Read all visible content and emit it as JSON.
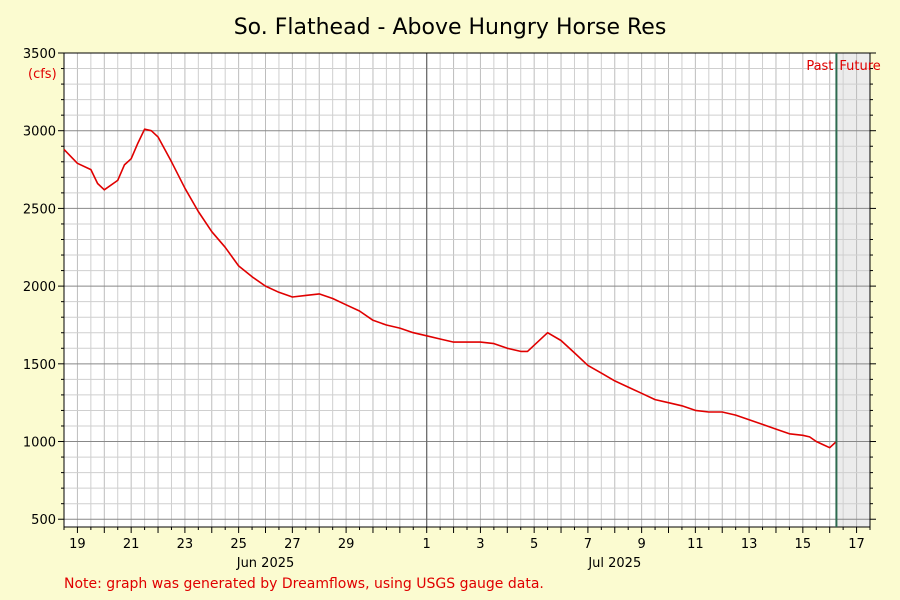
{
  "colors": {
    "background": "#fbfbd0",
    "plot_bg": "#ffffff",
    "future_bg": "#ececec",
    "grid_minor": "#cfcfcf",
    "grid_major": "#888888",
    "series": "#e00000",
    "now_line": "#2e6b50",
    "month_line": "#666666"
  },
  "chart_data": {
    "type": "line",
    "title": "So. Flathead - Above Hungry Horse Res",
    "ylabel": "(cfs)",
    "ylim": [
      450,
      3500
    ],
    "y_ticks": [
      500,
      1000,
      1500,
      2000,
      2500,
      3000,
      3500
    ],
    "xlim": [
      "2025-05-18T12:00",
      "2025-06-17T12:00"
    ],
    "x_day_ticks": [
      {
        "date": "2025-05-19",
        "label": "19"
      },
      {
        "date": "2025-05-21",
        "label": "21"
      },
      {
        "date": "2025-05-23",
        "label": "23"
      },
      {
        "date": "2025-05-25",
        "label": "25"
      },
      {
        "date": "2025-05-27",
        "label": "27"
      },
      {
        "date": "2025-05-29",
        "label": "29"
      },
      {
        "date": "2025-06-01",
        "label": "1"
      },
      {
        "date": "2025-06-03",
        "label": "3"
      },
      {
        "date": "2025-06-05",
        "label": "5"
      },
      {
        "date": "2025-06-07",
        "label": "7"
      },
      {
        "date": "2025-06-09",
        "label": "9"
      },
      {
        "date": "2025-06-11",
        "label": "11"
      },
      {
        "date": "2025-06-13",
        "label": "13"
      },
      {
        "date": "2025-06-15",
        "label": "15"
      },
      {
        "date": "2025-06-17",
        "label": "17"
      }
    ],
    "x_month_labels": [
      {
        "date": "2025-05-26",
        "label": "Jun 2025"
      },
      {
        "date": "2025-06-08",
        "label": "Jul 2025"
      }
    ],
    "month_boundary": "2025-06-01",
    "now": "2025-06-16T06:00",
    "past_label": "Past",
    "future_label": "Future",
    "grid": true,
    "series": [
      {
        "x": [
          "2025-05-18T12:00",
          "2025-05-19T00:00",
          "2025-05-19T12:00",
          "2025-05-19T18:00",
          "2025-05-20T00:00",
          "2025-05-20T12:00",
          "2025-05-20T18:00",
          "2025-05-21T00:00",
          "2025-05-21T06:00",
          "2025-05-21T12:00",
          "2025-05-21T18:00",
          "2025-05-22T00:00",
          "2025-05-22T12:00",
          "2025-05-23T00:00",
          "2025-05-23T12:00",
          "2025-05-24T00:00",
          "2025-05-24T12:00",
          "2025-05-25T00:00",
          "2025-05-25T12:00",
          "2025-05-26T00:00",
          "2025-05-26T12:00",
          "2025-05-27T00:00",
          "2025-05-27T12:00",
          "2025-05-28T00:00",
          "2025-05-28T12:00",
          "2025-05-29T00:00",
          "2025-05-29T12:00",
          "2025-05-30T00:00",
          "2025-05-30T12:00",
          "2025-05-31T00:00",
          "2025-05-31T12:00",
          "2025-06-01T00:00",
          "2025-06-01T12:00",
          "2025-06-02T00:00",
          "2025-06-02T12:00",
          "2025-06-03T00:00",
          "2025-06-03T12:00",
          "2025-06-04T00:00",
          "2025-06-04T12:00",
          "2025-06-04T18:00",
          "2025-06-05T00:00",
          "2025-06-05T12:00",
          "2025-06-06T00:00",
          "2025-06-06T12:00",
          "2025-06-07T00:00",
          "2025-06-07T12:00",
          "2025-06-08T00:00",
          "2025-06-08T12:00",
          "2025-06-09T00:00",
          "2025-06-09T12:00",
          "2025-06-10T00:00",
          "2025-06-10T12:00",
          "2025-06-11T00:00",
          "2025-06-11T12:00",
          "2025-06-12T00:00",
          "2025-06-12T12:00",
          "2025-06-13T00:00",
          "2025-06-13T12:00",
          "2025-06-14T00:00",
          "2025-06-14T12:00",
          "2025-06-15T00:00",
          "2025-06-15T06:00",
          "2025-06-15T12:00",
          "2025-06-15T18:00",
          "2025-06-16T00:00",
          "2025-06-16T06:00"
        ],
        "y": [
          2880,
          2790,
          2750,
          2660,
          2620,
          2680,
          2780,
          2820,
          2920,
          3010,
          3000,
          2960,
          2800,
          2630,
          2480,
          2350,
          2250,
          2130,
          2060,
          2000,
          1960,
          1930,
          1940,
          1950,
          1920,
          1880,
          1840,
          1780,
          1750,
          1730,
          1700,
          1680,
          1660,
          1640,
          1640,
          1640,
          1630,
          1600,
          1580,
          1580,
          1620,
          1700,
          1650,
          1570,
          1490,
          1440,
          1390,
          1350,
          1310,
          1270,
          1250,
          1230,
          1200,
          1190,
          1190,
          1170,
          1140,
          1110,
          1080,
          1050,
          1040,
          1030,
          1000,
          980,
          960,
          1000
        ]
      }
    ],
    "note": "Note: graph was generated by Dreamflows, using USGS gauge data."
  }
}
